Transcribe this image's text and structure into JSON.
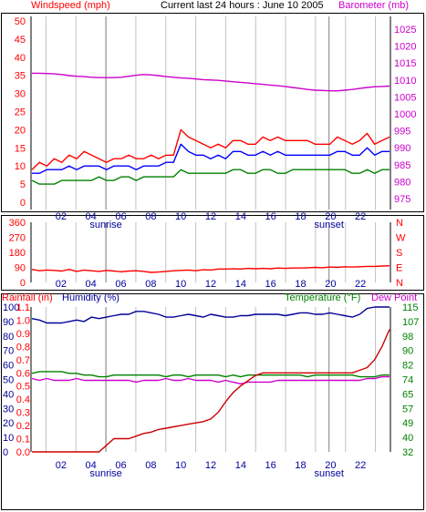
{
  "header": {
    "title": "Current last 24 hours : June 10 2005",
    "wind_label": "Windspeed (mph)",
    "baro_label": "Barometer (mb)"
  },
  "hours": [
    "02",
    "04",
    "06",
    "08",
    "10",
    "12",
    "14",
    "16",
    "18",
    "20",
    "22"
  ],
  "sunrise_label": "sunrise",
  "sunset_label": "sunset",
  "colors": {
    "wind_gust": "#ff0000",
    "wind_avg": "#0000ff",
    "wind_min": "#008000",
    "barometer": "#cc00cc",
    "direction": "#ff0000",
    "rain_label": "#ff0000",
    "rainfall": "#cc0000",
    "humidity": "#000099",
    "temperature": "#008000",
    "dew_point": "#cc00cc",
    "grid": "#c0c0c0",
    "sun_line": "#808080"
  },
  "chart_data": [
    {
      "type": "line",
      "title": "Current last 24 hours : June 10 2005",
      "x_range": [
        0,
        24
      ],
      "left_axis": {
        "label": "Windspeed (mph)",
        "range": [
          0,
          50
        ],
        "ticks": [
          "0",
          "5",
          "10",
          "15",
          "20",
          "25",
          "30",
          "35",
          "40",
          "45",
          "50"
        ]
      },
      "right_axis": {
        "label": "Barometer (mb)",
        "range": [
          975,
          1025
        ],
        "ticks": [
          "975",
          "980",
          "985",
          "990",
          "995",
          "1000",
          "1005",
          "1010",
          "1015",
          "1020",
          "1025"
        ]
      },
      "grid": true,
      "series": [
        {
          "axis": "left",
          "color": "#ff0000",
          "values": [
            9,
            11,
            10,
            12,
            11,
            13,
            12,
            14,
            13,
            12,
            11,
            12,
            12,
            13,
            12,
            12,
            13,
            12,
            13,
            13,
            20,
            18,
            17,
            16,
            15,
            16,
            15,
            17,
            17,
            16,
            16,
            18,
            17,
            18,
            17,
            17,
            17,
            17,
            16,
            16,
            16,
            18,
            17,
            16,
            17,
            19,
            16,
            17,
            18
          ]
        },
        {
          "axis": "left",
          "color": "#0000ff",
          "values": [
            8,
            8,
            9,
            9,
            9,
            10,
            9,
            10,
            10,
            10,
            9,
            10,
            10,
            10,
            9,
            10,
            10,
            10,
            11,
            11,
            16,
            14,
            13,
            13,
            12,
            13,
            12,
            14,
            14,
            13,
            13,
            14,
            13,
            14,
            13,
            13,
            13,
            13,
            13,
            13,
            13,
            14,
            14,
            13,
            13,
            15,
            13,
            14,
            14
          ]
        },
        {
          "axis": "left",
          "color": "#008000",
          "values": [
            6,
            5,
            5,
            5,
            6,
            6,
            6,
            6,
            6,
            7,
            6,
            6,
            7,
            7,
            6,
            7,
            7,
            7,
            7,
            7,
            9,
            8,
            8,
            8,
            8,
            8,
            8,
            9,
            9,
            8,
            8,
            9,
            9,
            8,
            8,
            9,
            9,
            9,
            9,
            9,
            9,
            9,
            9,
            8,
            8,
            9,
            8,
            9,
            9
          ]
        },
        {
          "axis": "right",
          "color": "#cc00cc",
          "values": [
            1012,
            1012,
            1011.9,
            1011.8,
            1011.6,
            1011.3,
            1011.1,
            1011,
            1010.8,
            1010.7,
            1010.7,
            1010.7,
            1010.8,
            1011.1,
            1011.4,
            1011.6,
            1011.5,
            1011.3,
            1011,
            1010.8,
            1010.6,
            1010.5,
            1010.3,
            1010.1,
            1010,
            1009.9,
            1009.7,
            1009.5,
            1009.3,
            1009.1,
            1008.9,
            1008.7,
            1008.5,
            1008.3,
            1008.1,
            1007.8,
            1007.5,
            1007.2,
            1007,
            1006.9,
            1006.8,
            1006.8,
            1007,
            1007.2,
            1007.5,
            1007.8,
            1008,
            1008.1,
            1008.2
          ]
        }
      ]
    },
    {
      "type": "line",
      "x_range": [
        0,
        24
      ],
      "left_axis": {
        "range": [
          0,
          360
        ],
        "ticks": [
          "0",
          "90",
          "180",
          "270",
          "360"
        ]
      },
      "right_axis": {
        "ticks": [
          "N",
          "W",
          "S",
          "E",
          "N"
        ]
      },
      "grid": true,
      "series": [
        {
          "axis": "left",
          "color": "#ff0000",
          "values": [
            78,
            70,
            74,
            72,
            68,
            78,
            66,
            74,
            70,
            66,
            72,
            68,
            64,
            68,
            70,
            66,
            60,
            62,
            66,
            70,
            72,
            74,
            70,
            76,
            74,
            80,
            80,
            82,
            80,
            84,
            82,
            84,
            82,
            86,
            84,
            86,
            86,
            88,
            90,
            88,
            92,
            90,
            94,
            92,
            94,
            96,
            96,
            98,
            100
          ]
        }
      ]
    },
    {
      "type": "line",
      "x_range": [
        0,
        24
      ],
      "labels": {
        "rainfall": "Rainfall (in)",
        "humidity": "Humidity (%)",
        "temperature": "Temperature (°F)",
        "dew_point": "Dew Point"
      },
      "humidity_axis": {
        "range": [
          0,
          100
        ],
        "ticks": [
          "0",
          "10",
          "20",
          "30",
          "40",
          "50",
          "60",
          "70",
          "80",
          "90",
          "100"
        ]
      },
      "rainfall_axis": {
        "range": [
          0,
          1.1
        ],
        "ticks": [
          "0.0",
          "0.1",
          "0.2",
          "0.3",
          "0.4",
          "0.5",
          "0.6",
          "0.7",
          "0.8",
          "0.9",
          "1.0",
          "1.1"
        ]
      },
      "temperature_axis": {
        "range": [
          32,
          115
        ],
        "ticks": [
          "32",
          "40",
          "49",
          "57",
          "65",
          "74",
          "82",
          "90",
          "98",
          "107",
          "115"
        ]
      },
      "grid": true,
      "series": [
        {
          "axis": "humidity",
          "color": "#000099",
          "values": [
            92,
            91,
            89,
            89,
            89,
            90,
            91,
            90,
            93,
            92,
            93,
            94,
            95,
            95,
            97,
            97,
            96,
            95,
            93,
            93,
            94,
            95,
            94,
            93,
            95,
            94,
            93,
            93,
            94,
            94,
            95,
            95,
            95,
            95,
            94,
            95,
            96,
            96,
            95,
            95,
            96,
            95,
            94,
            93,
            95,
            99,
            100,
            100,
            100
          ]
        },
        {
          "axis": "temperature",
          "color": "#008000",
          "values": [
            77,
            78,
            78,
            78,
            78,
            77,
            77,
            76,
            76,
            75,
            75,
            76,
            76,
            76,
            76,
            76,
            76,
            76,
            75,
            76,
            76,
            75,
            76,
            76,
            76,
            76,
            75,
            76,
            75,
            76,
            76,
            76,
            76,
            76,
            76,
            76,
            76,
            75,
            76,
            76,
            76,
            76,
            76,
            76,
            75,
            75,
            75,
            76,
            76
          ]
        },
        {
          "axis": "temperature",
          "color": "#cc00cc",
          "values": [
            74,
            73,
            74,
            73,
            73,
            73,
            74,
            73,
            73,
            73,
            73,
            73,
            73,
            73,
            72,
            73,
            73,
            73,
            74,
            73,
            73,
            74,
            73,
            73,
            73,
            72,
            73,
            72,
            71,
            72,
            72,
            72,
            72,
            73,
            73,
            73,
            73,
            73,
            73,
            73,
            73,
            73,
            73,
            73,
            73,
            74,
            74,
            75,
            75
          ]
        },
        {
          "axis": "rainfall",
          "color": "#cc0000",
          "values": [
            0,
            0,
            0,
            0,
            0,
            0,
            0,
            0,
            0,
            0,
            0.05,
            0.1,
            0.1,
            0.1,
            0.12,
            0.14,
            0.15,
            0.17,
            0.18,
            0.19,
            0.2,
            0.21,
            0.22,
            0.23,
            0.25,
            0.3,
            0.38,
            0.45,
            0.5,
            0.54,
            0.58,
            0.6,
            0.6,
            0.6,
            0.6,
            0.6,
            0.6,
            0.6,
            0.6,
            0.6,
            0.6,
            0.6,
            0.6,
            0.6,
            0.62,
            0.64,
            0.7,
            0.8,
            0.93
          ]
        }
      ]
    }
  ]
}
